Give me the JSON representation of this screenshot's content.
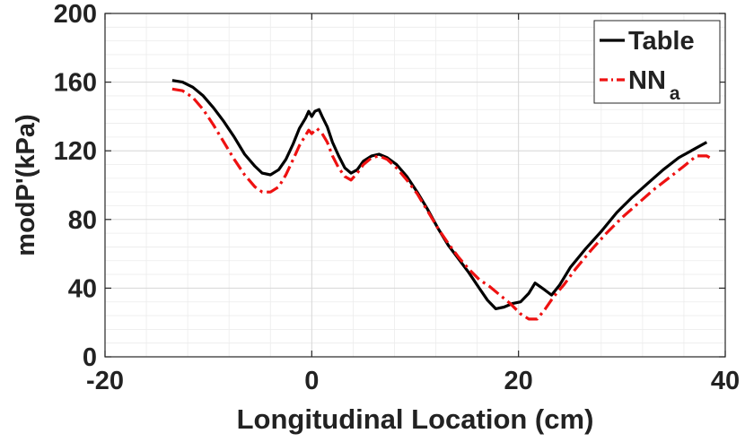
{
  "chart_data": {
    "type": "line",
    "xlabel": "Longitudinal Location (cm)",
    "ylabel": "modP'(kPa)",
    "xlim": [
      -20,
      40
    ],
    "ylim": [
      0,
      200
    ],
    "x_ticks": [
      -20,
      0,
      20,
      40
    ],
    "y_ticks": [
      0,
      40,
      80,
      120,
      160,
      200
    ],
    "x_tick_labels": [
      "-20",
      "0",
      "20",
      "40"
    ],
    "y_tick_labels": [
      "0",
      "40",
      "80",
      "120",
      "160",
      "200"
    ],
    "grid": true,
    "minor_grid": true,
    "legend_position": "top-right",
    "series": [
      {
        "name": "Table",
        "legend_label": "Table",
        "color": "#000000",
        "dash": "solid",
        "points": [
          [
            -13.5,
            161
          ],
          [
            -12.5,
            160
          ],
          [
            -11.5,
            157
          ],
          [
            -10.5,
            152
          ],
          [
            -9.5,
            145
          ],
          [
            -8.5,
            137
          ],
          [
            -7.5,
            128
          ],
          [
            -6.5,
            118
          ],
          [
            -5.5,
            111
          ],
          [
            -4.8,
            107
          ],
          [
            -4,
            106
          ],
          [
            -3.2,
            109
          ],
          [
            -2.5,
            115
          ],
          [
            -1.8,
            124
          ],
          [
            -1.2,
            133
          ],
          [
            -0.6,
            139
          ],
          [
            -0.3,
            143
          ],
          [
            0,
            140
          ],
          [
            0.3,
            143
          ],
          [
            0.7,
            144
          ],
          [
            1,
            140
          ],
          [
            1.5,
            134
          ],
          [
            2,
            125
          ],
          [
            2.6,
            117
          ],
          [
            3.2,
            110
          ],
          [
            3.8,
            107
          ],
          [
            4.4,
            109
          ],
          [
            5,
            114
          ],
          [
            5.8,
            117
          ],
          [
            6.5,
            118
          ],
          [
            7.3,
            116
          ],
          [
            8.2,
            112
          ],
          [
            9.2,
            105
          ],
          [
            10.2,
            96
          ],
          [
            11.2,
            86
          ],
          [
            12.2,
            75
          ],
          [
            13.2,
            65
          ],
          [
            14.2,
            57
          ],
          [
            15.2,
            49
          ],
          [
            16.2,
            40
          ],
          [
            17,
            33
          ],
          [
            17.8,
            28
          ],
          [
            18.6,
            29
          ],
          [
            19.4,
            31
          ],
          [
            20.2,
            32
          ],
          [
            21,
            37
          ],
          [
            21.6,
            43
          ],
          [
            22.3,
            40
          ],
          [
            23.2,
            36
          ],
          [
            24,
            42
          ],
          [
            25,
            52
          ],
          [
            26.5,
            63
          ],
          [
            28,
            73
          ],
          [
            29.5,
            84
          ],
          [
            31,
            93
          ],
          [
            32.5,
            101
          ],
          [
            34,
            109
          ],
          [
            35.5,
            116
          ],
          [
            37,
            121
          ],
          [
            38.2,
            125
          ]
        ]
      },
      {
        "name": "NN",
        "legend_label": "NN",
        "legend_subscript": "a",
        "color": "#ee1111",
        "dash": "dashdot",
        "points": [
          [
            -13.5,
            156
          ],
          [
            -12.5,
            155
          ],
          [
            -11.5,
            151
          ],
          [
            -10.5,
            144
          ],
          [
            -9.5,
            135
          ],
          [
            -8.5,
            125
          ],
          [
            -7.5,
            115
          ],
          [
            -6.5,
            106
          ],
          [
            -5.5,
            99
          ],
          [
            -4.8,
            96
          ],
          [
            -4,
            96
          ],
          [
            -3.2,
            99
          ],
          [
            -2.5,
            106
          ],
          [
            -1.8,
            115
          ],
          [
            -1.2,
            123
          ],
          [
            -0.6,
            129
          ],
          [
            -0.3,
            132
          ],
          [
            0,
            130
          ],
          [
            0.5,
            133
          ],
          [
            1,
            130
          ],
          [
            1.5,
            125
          ],
          [
            2,
            117
          ],
          [
            2.6,
            110
          ],
          [
            3.2,
            105
          ],
          [
            3.8,
            103
          ],
          [
            4.4,
            107
          ],
          [
            5,
            112
          ],
          [
            5.8,
            116
          ],
          [
            6.5,
            117
          ],
          [
            7.3,
            115
          ],
          [
            8.2,
            110
          ],
          [
            9.2,
            103
          ],
          [
            10.2,
            95
          ],
          [
            11.2,
            85
          ],
          [
            12.2,
            75
          ],
          [
            13.2,
            66
          ],
          [
            14.2,
            58
          ],
          [
            15.2,
            51
          ],
          [
            16.2,
            45
          ],
          [
            17.2,
            41
          ],
          [
            18.2,
            36
          ],
          [
            19.2,
            31
          ],
          [
            20.2,
            25
          ],
          [
            21,
            22
          ],
          [
            21.8,
            22
          ],
          [
            22.6,
            28
          ],
          [
            23.4,
            35
          ],
          [
            24.4,
            42
          ],
          [
            25.5,
            51
          ],
          [
            27,
            62
          ],
          [
            28.5,
            72
          ],
          [
            30,
            81
          ],
          [
            31.5,
            89
          ],
          [
            33,
            97
          ],
          [
            34.5,
            104
          ],
          [
            36,
            111
          ],
          [
            37.2,
            117
          ],
          [
            38.2,
            117
          ],
          [
            38.8,
            115
          ]
        ]
      }
    ]
  }
}
